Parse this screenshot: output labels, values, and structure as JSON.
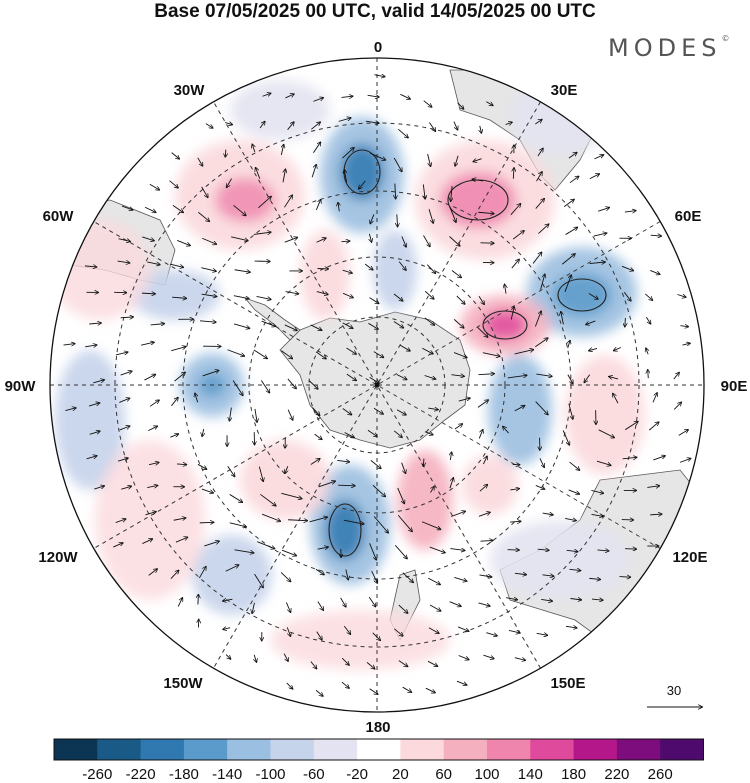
{
  "title": "Base 07/05/2025 00 UTC, valid 14/05/2025 00 UTC",
  "brand": "MODES",
  "brand_mark": "©",
  "map": {
    "projection": "south-polar-stereographic",
    "longitude_labels": {
      "0": "0",
      "30E": "30E",
      "60E": "60E",
      "90E": "90E",
      "120E": "120E",
      "150E": "150E",
      "180": "180",
      "150W": "150W",
      "120W": "120W",
      "90W": "90W",
      "60W": "60W",
      "30W": "30W"
    },
    "vector_reference": "30"
  },
  "colorbar": {
    "labels": [
      "-260",
      "-220",
      "-180",
      "-140",
      "-100",
      "-60",
      "-20",
      "20",
      "60",
      "100",
      "140",
      "180",
      "220",
      "260"
    ],
    "colors": [
      "#0b3552",
      "#1a5a86",
      "#2f78b0",
      "#5b9bcb",
      "#9bbfe0",
      "#c5d3eb",
      "#e3e3f1",
      "#ffffff",
      "#fbd9dd",
      "#f5b0bf",
      "#ef84ad",
      "#e04a9c",
      "#b3178a",
      "#7d0d7c",
      "#4e0a6c"
    ]
  }
}
